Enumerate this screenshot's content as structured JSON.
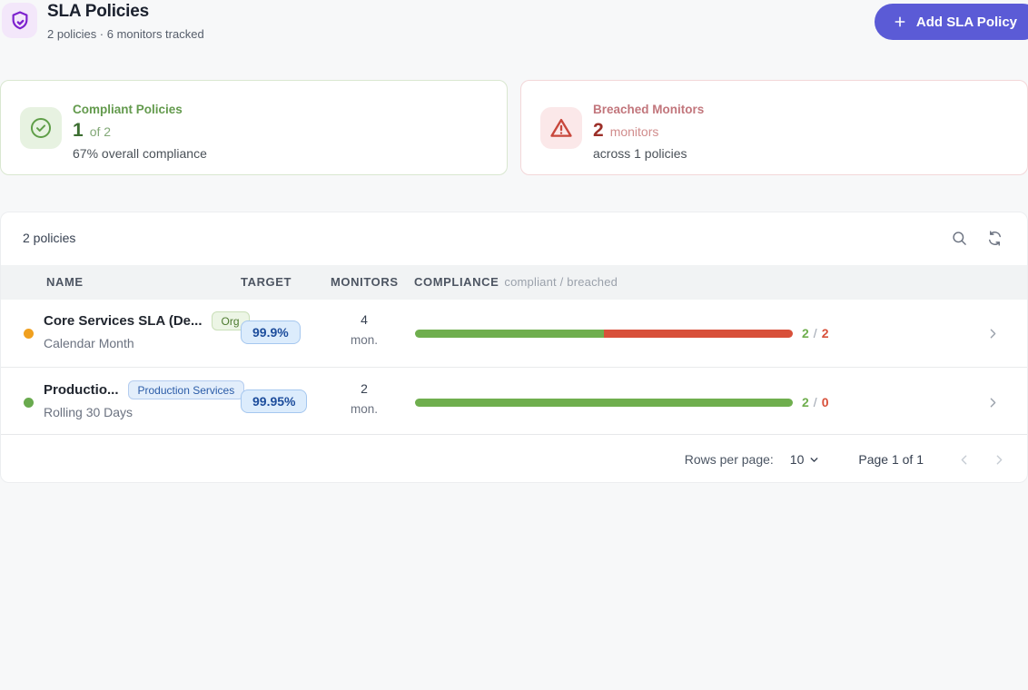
{
  "colors": {
    "accent": "#5b5bd6",
    "bar_green": "#6fae4e",
    "bar_red": "#d8503a"
  },
  "header": {
    "icon": "shield-check-icon",
    "title": "SLA Policies",
    "subtitle": "2 policies · 6 monitors tracked",
    "add_button": "Add SLA Policy"
  },
  "cards": {
    "compliant": {
      "icon": "check-circle-icon",
      "title": "Compliant Policies",
      "value": "1",
      "suffix": "of 2",
      "caption": "67% overall compliance"
    },
    "breached": {
      "icon": "warning-triangle-icon",
      "title": "Breached Monitors",
      "value": "2",
      "suffix": "monitors",
      "caption": "across 1 policies"
    }
  },
  "table": {
    "toolbar": {
      "count": "2 policies",
      "icons": [
        "search-icon",
        "refresh-icon"
      ]
    },
    "columns": {
      "name": "NAME",
      "target": "TARGET",
      "monitors": "MONITORS",
      "compliance": "COMPLIANCE",
      "compliance_hint": "compliant / breached"
    },
    "count_separator": "/",
    "rows": [
      {
        "status_color": "#f0a01f",
        "name": "Core Services SLA (De...",
        "badge": "Org",
        "badge_style": "green",
        "period": "Calendar Month",
        "target": "99.9%",
        "monitors_count": "4",
        "monitors_unit": "mon.",
        "bar_green_pct": 50,
        "bar_red_pct": 50,
        "compliant": "2",
        "breached": "2"
      },
      {
        "status_color": "#69aa4e",
        "name": "Productio...",
        "badge": "Production Services",
        "badge_style": "blue",
        "period": "Rolling 30 Days",
        "target": "99.95%",
        "monitors_count": "2",
        "monitors_unit": "mon.",
        "bar_green_pct": 100,
        "bar_red_pct": 0,
        "compliant": "2",
        "breached": "0"
      }
    ],
    "pagination": {
      "rows_per_page_label": "Rows per page:",
      "rows_per_page_value": "10",
      "page": "Page 1 of 1"
    }
  }
}
